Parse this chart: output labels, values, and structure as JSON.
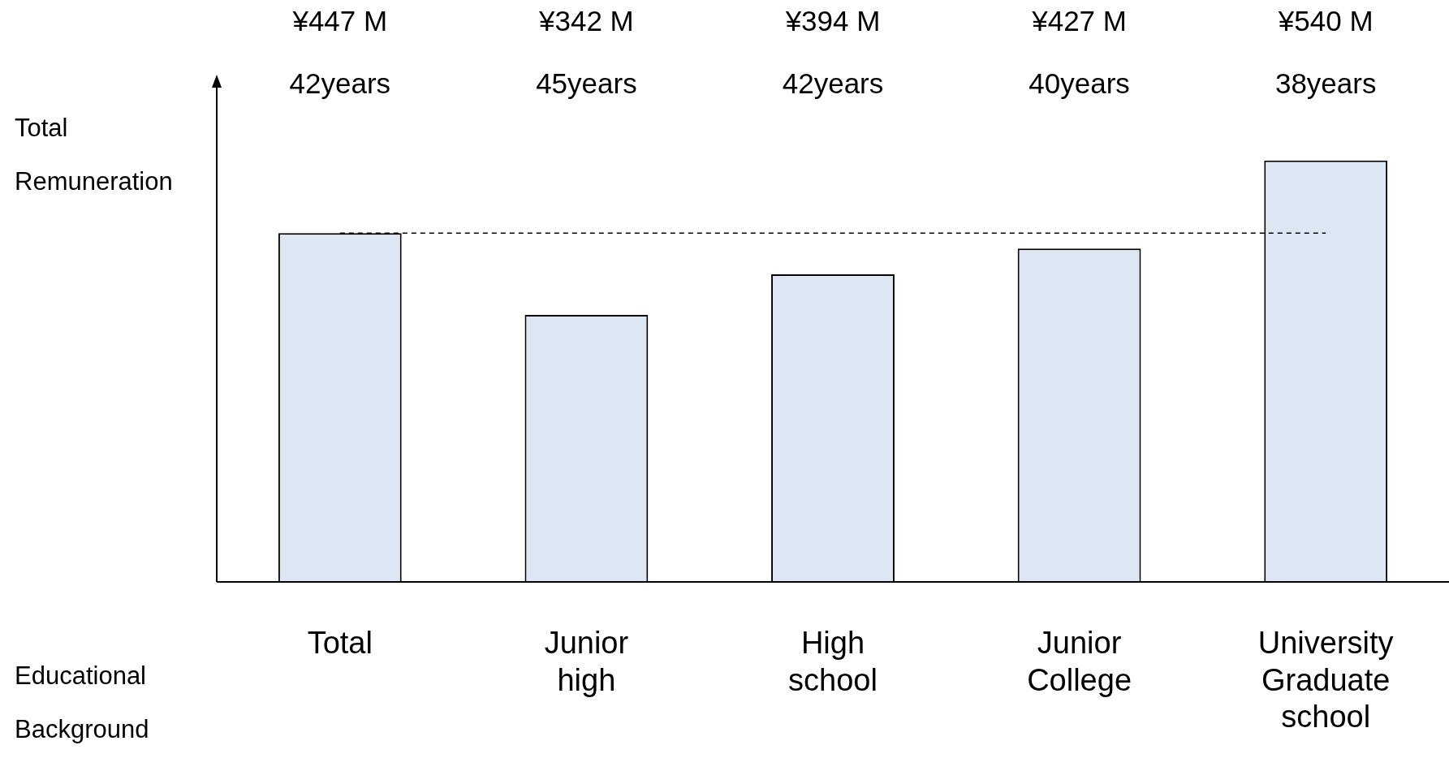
{
  "chart_data": {
    "type": "bar",
    "ylabel": "Total Remuneration",
    "categories": [
      "Total",
      "Junior high",
      "High school",
      "Junior College",
      "University Graduate school"
    ],
    "values": [
      447,
      342,
      394,
      427,
      540
    ],
    "value_labels": [
      "¥447 M",
      "¥342 M",
      "¥394 M",
      "¥427 M",
      "¥540 M"
    ],
    "color": "#dde6f3",
    "ref_lines": [
      {
        "axis": "y",
        "value": 447,
        "line_style": "dashed",
        "color": "#000000"
      }
    ],
    "annotations": [
      "42years",
      "45years",
      "42years",
      "40years",
      "38years",
      "Educational Background"
    ],
    "legend": false,
    "grid": false
  }
}
